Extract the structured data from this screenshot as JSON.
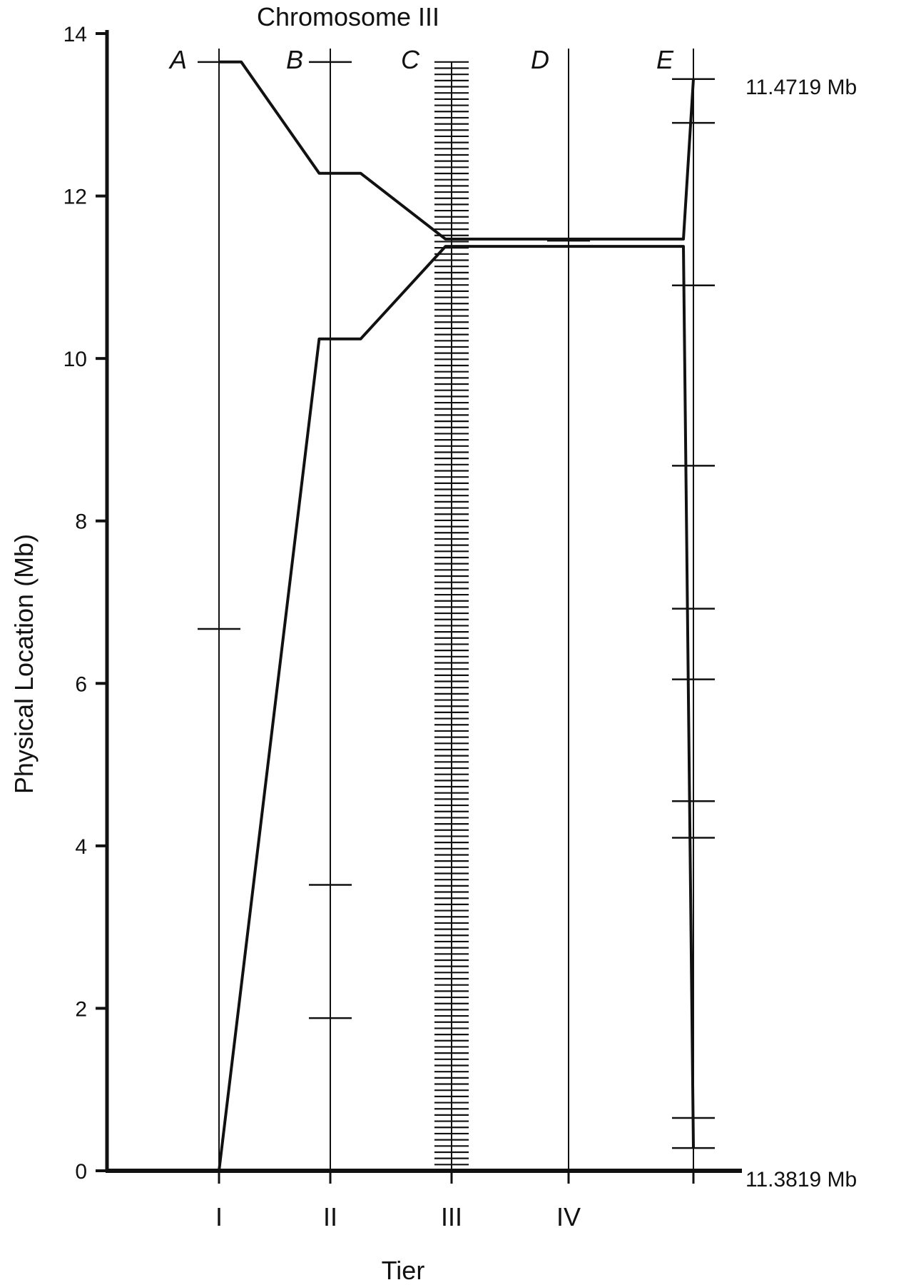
{
  "chart_data": {
    "type": "line",
    "title": "Chromosome III",
    "xlabel": "Tier",
    "ylabel": "Physical Location (Mb)",
    "ylim": [
      0,
      14
    ],
    "yticks": [
      0,
      2,
      4,
      6,
      8,
      10,
      12,
      14
    ],
    "tiers": [
      {
        "label": "I",
        "panel": "A"
      },
      {
        "label": "II",
        "panel": "B"
      },
      {
        "label": "III",
        "panel": "C"
      },
      {
        "label": "IV",
        "panel": "D"
      },
      {
        "label": "",
        "panel": "E"
      }
    ],
    "right_labels": {
      "upper": "11.4719 Mb",
      "lower": "11.3819 Mb"
    },
    "markers": {
      "A": [
        0.0,
        6.67,
        13.65
      ],
      "B": [
        0.0,
        1.88,
        3.52,
        13.65
      ],
      "D": [
        11.45
      ],
      "E": [
        0.28,
        0.65,
        4.1,
        4.55,
        6.05,
        6.92,
        8.68,
        10.9,
        12.9,
        13.44
      ]
    },
    "dense_markers_C": {
      "range": [
        0.0,
        13.65
      ],
      "count": 180
    },
    "upper_boundary": [
      {
        "x": 0,
        "y": 13.65
      },
      {
        "x": 0.2,
        "y": 13.65
      },
      {
        "x": 0.9,
        "y": 12.28
      },
      {
        "x": 1.25,
        "y": 12.28
      },
      {
        "x": 1.95,
        "y": 11.47
      },
      {
        "x": 3.4,
        "y": 11.47
      },
      {
        "x": 3.4,
        "y": 11.47
      },
      {
        "x": 3.92,
        "y": 11.47
      },
      {
        "x": 4.22,
        "y": 13.44
      }
    ],
    "lower_boundary": [
      {
        "x": 0,
        "y": 0.0
      },
      {
        "x": 0.9,
        "y": 10.24
      },
      {
        "x": 1.25,
        "y": 10.24
      },
      {
        "x": 1.95,
        "y": 11.38
      },
      {
        "x": 3.92,
        "y": 11.38
      },
      {
        "x": 4.22,
        "y": 0.28
      }
    ],
    "grid": false,
    "line_color": "#111111"
  }
}
